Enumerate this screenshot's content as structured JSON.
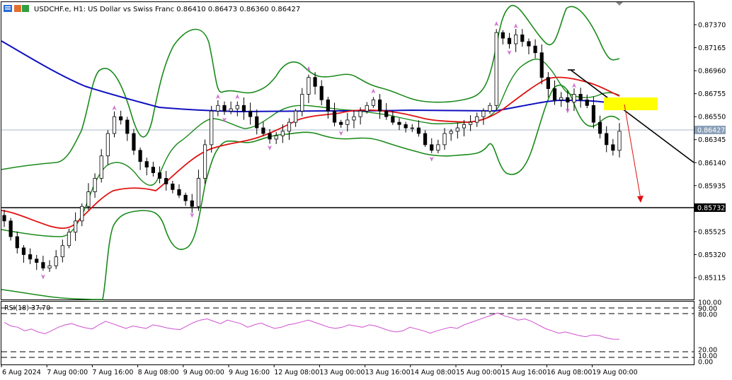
{
  "header": {
    "symbol_line": "USDCHF.e, H1:  US Dollar vs Swiss Franc  0.86410 0.86473 0.86360 0.86427"
  },
  "price_axis": {
    "ticks": [
      "0.87370",
      "0.87165",
      "0.86960",
      "0.86755",
      "0.86550",
      "0.86345",
      "0.86140",
      "0.85935",
      "0.85730",
      "0.85525",
      "0.85320",
      "0.85115"
    ],
    "current_price_label": "0.86427",
    "support_label": "0.85732"
  },
  "rsi_panel": {
    "label": "RSI(18) 37.70",
    "ticks": [
      "100.00",
      "90.00",
      "80.00",
      "20.00",
      "10.00",
      "0.00"
    ]
  },
  "time_axis": {
    "labels": [
      "6 Aug 2024",
      "7 Aug 00:00",
      "7 Aug 16:00",
      "8 Aug 08:00",
      "9 Aug 00:00",
      "9 Aug 16:00",
      "12 Aug 08:00",
      "13 Aug 00:00",
      "13 Aug 16:00",
      "14 Aug 08:00",
      "15 Aug 00:00",
      "15 Aug 16:00",
      "16 Aug 08:00",
      "19 Aug 00:00"
    ]
  },
  "colors": {
    "bollinger": "#1a8a1a",
    "ma_slow": "#1010c0",
    "ma_fast": "#e01010",
    "fractal": "#d070d0",
    "rsi": "#d050d0",
    "zone": "#ffff00",
    "arrow": "#e01010",
    "candle": "#000000"
  },
  "chart_data": {
    "type": "candlestick",
    "symbol": "USDCHF.e",
    "timeframe": "H1",
    "ohlc_last": {
      "open": 0.8641,
      "high": 0.86473,
      "low": 0.8636,
      "close": 0.86427
    },
    "ylim": [
      0.8505,
      0.875
    ],
    "support_level": 0.85732,
    "resistance_zone": [
      0.866,
      0.8672
    ],
    "current_price": 0.86427,
    "close_path": [
      0.8562,
      0.8548,
      0.8538,
      0.8532,
      0.8528,
      0.8525,
      0.852,
      0.8522,
      0.853,
      0.854,
      0.8552,
      0.8562,
      0.8575,
      0.8588,
      0.86,
      0.862,
      0.864,
      0.8655,
      0.8652,
      0.864,
      0.8625,
      0.8615,
      0.861,
      0.8605,
      0.86,
      0.8595,
      0.859,
      0.8585,
      0.858,
      0.8575,
      0.86,
      0.863,
      0.866,
      0.8665,
      0.866,
      0.8662,
      0.8665,
      0.866,
      0.8655,
      0.8645,
      0.864,
      0.8635,
      0.8638,
      0.8642,
      0.865,
      0.866,
      0.8675,
      0.869,
      0.8682,
      0.867,
      0.866,
      0.865,
      0.8648,
      0.8652,
      0.8655,
      0.866,
      0.8665,
      0.867,
      0.866,
      0.8655,
      0.865,
      0.8648,
      0.8645,
      0.8645,
      0.864,
      0.863,
      0.8625,
      0.863,
      0.864,
      0.8642,
      0.8645,
      0.8648,
      0.865,
      0.8655,
      0.866,
      0.8665,
      0.873,
      0.8725,
      0.872,
      0.8728,
      0.8722,
      0.8718,
      0.8712,
      0.869,
      0.868,
      0.867,
      0.8672,
      0.8668,
      0.8675,
      0.867,
      0.8665,
      0.865,
      0.864,
      0.863,
      0.8625,
      0.8642
    ],
    "rsi": {
      "period": 18,
      "value": 37.7,
      "levels": [
        100,
        90,
        80,
        20,
        10,
        0
      ],
      "series": [
        66,
        60,
        58,
        52,
        55,
        50,
        47,
        52,
        58,
        62,
        64,
        60,
        57,
        55,
        62,
        68,
        64,
        60,
        56,
        60,
        58,
        56,
        62,
        60,
        57,
        55,
        54,
        60,
        66,
        70,
        72,
        68,
        64,
        70,
        67,
        64,
        58,
        62,
        65,
        60,
        56,
        58,
        62,
        64,
        67,
        70,
        66,
        62,
        58,
        56,
        58,
        62,
        60,
        58,
        62,
        60,
        56,
        52,
        50,
        52,
        58,
        55,
        52,
        48,
        52,
        55,
        58,
        56,
        62,
        66,
        70,
        74,
        78,
        82,
        77,
        74,
        70,
        72,
        68,
        62,
        56,
        52,
        48,
        50,
        47,
        44,
        42,
        45,
        44,
        40,
        38,
        37.7
      ]
    }
  }
}
